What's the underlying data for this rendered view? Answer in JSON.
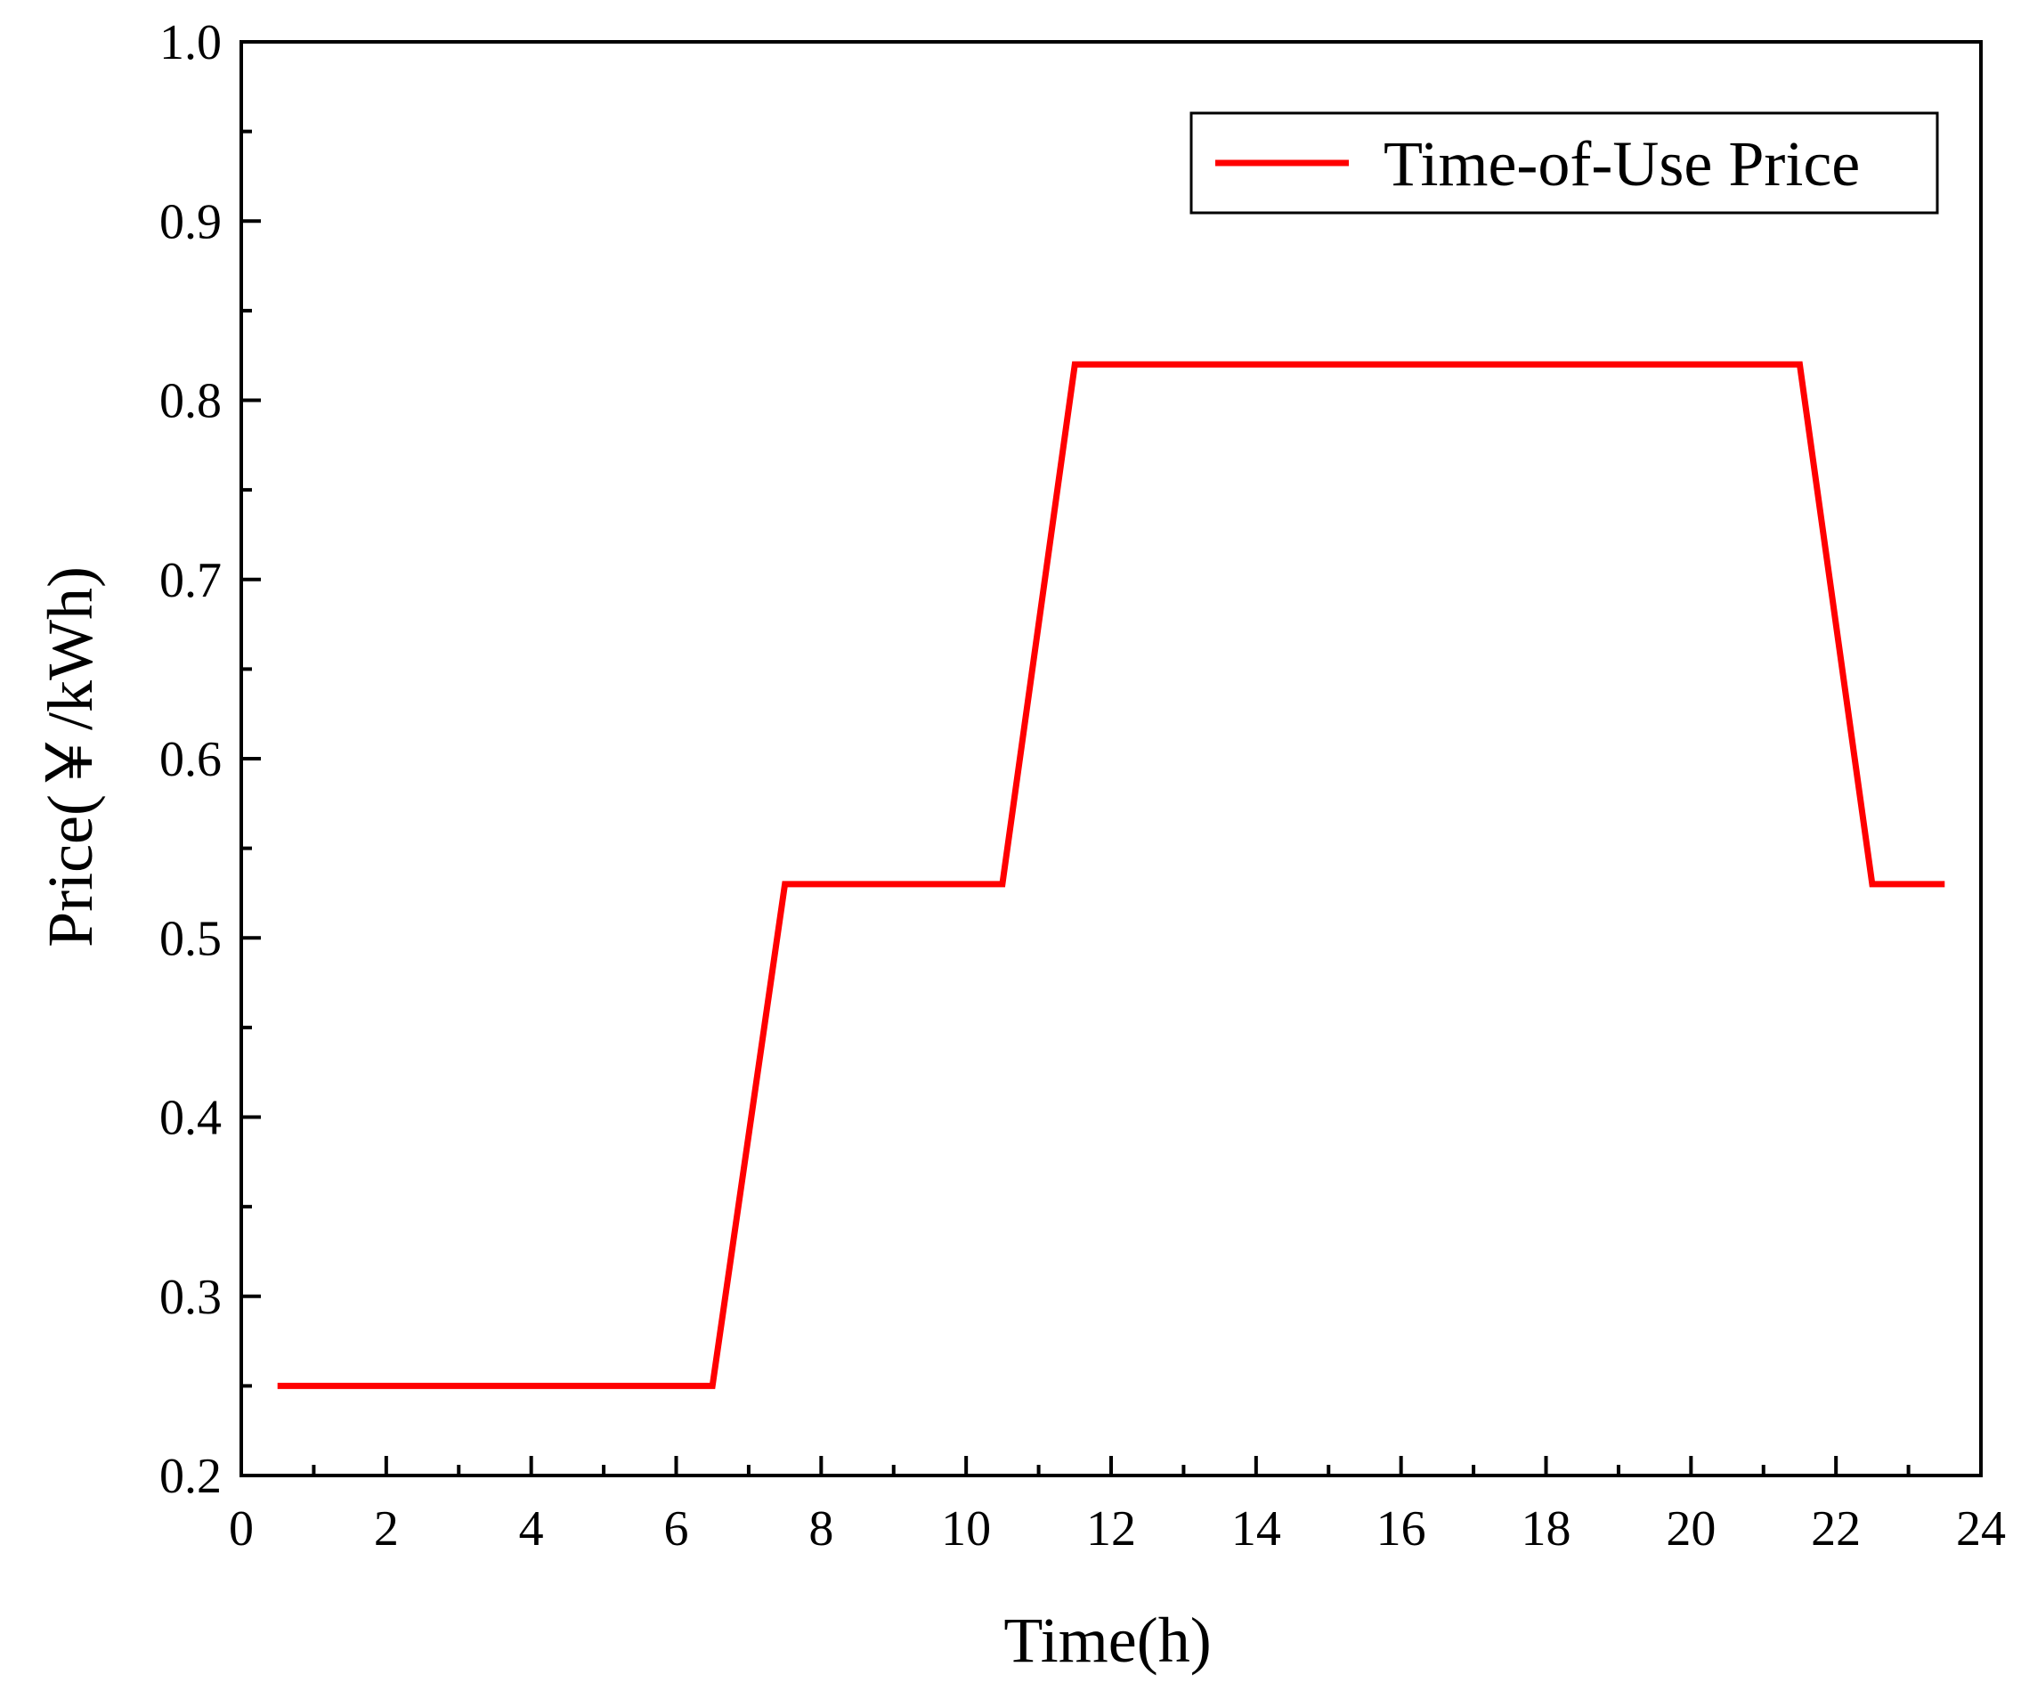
{
  "chart_data": {
    "type": "line",
    "title": "",
    "xlabel": "Time(h)",
    "ylabel": "Price(￥/kWh)",
    "xlim": [
      0,
      24
    ],
    "ylim": [
      0.2,
      1.0
    ],
    "xticks": [
      0,
      2,
      4,
      6,
      8,
      10,
      12,
      14,
      16,
      18,
      20,
      22,
      24
    ],
    "xtick_labels": [
      "0",
      "2",
      "4",
      "6",
      "8",
      "10",
      "12",
      "14",
      "16",
      "18",
      "20",
      "22",
      "24"
    ],
    "yticks": [
      0.2,
      0.3,
      0.4,
      0.5,
      0.6,
      0.7,
      0.8,
      0.9,
      1.0
    ],
    "ytick_labels": [
      "0.2",
      "0.3",
      "0.4",
      "0.5",
      "0.6",
      "0.7",
      "0.8",
      "0.9",
      "1.0"
    ],
    "grid": false,
    "legend_position": "top-right",
    "series": [
      {
        "name": "Time-of-Use Price",
        "color": "#ff0000",
        "x": [
          0.5,
          6.5,
          7.5,
          10.5,
          11.5,
          21.5,
          22.5,
          23.5
        ],
        "y": [
          0.25,
          0.25,
          0.53,
          0.53,
          0.82,
          0.82,
          0.53,
          0.53
        ]
      }
    ]
  }
}
